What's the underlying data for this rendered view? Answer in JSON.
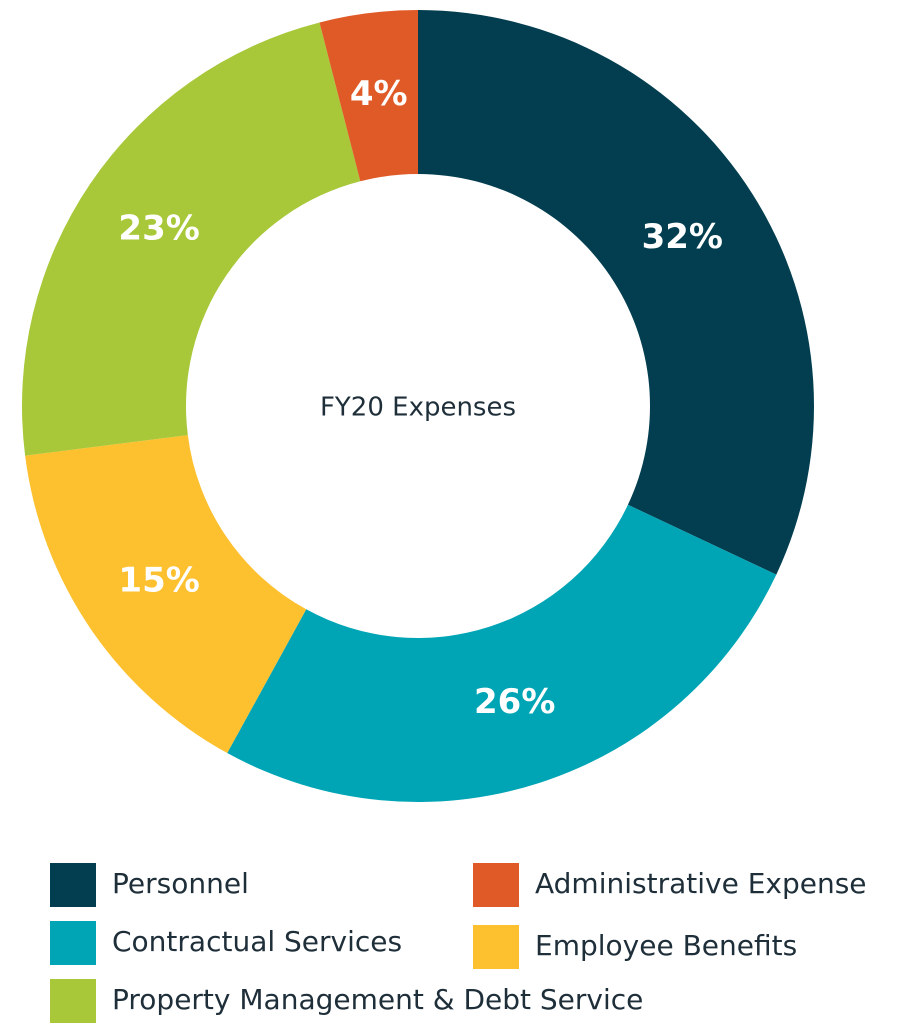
{
  "chart_data": {
    "type": "donut",
    "title": "FY20 Expenses",
    "categories": [
      "Personnel",
      "Contractual Services",
      "Employee Benefits",
      "Property Management & Debt Service",
      "Administrative Expense"
    ],
    "values": [
      32,
      26,
      15,
      23,
      4
    ],
    "value_labels": [
      "32%",
      "26%",
      "15%",
      "23%",
      "4%"
    ],
    "colors": [
      "#023e50",
      "#00a5b5",
      "#fdc02f",
      "#a8c83a",
      "#e05a27"
    ],
    "legend": true
  }
}
